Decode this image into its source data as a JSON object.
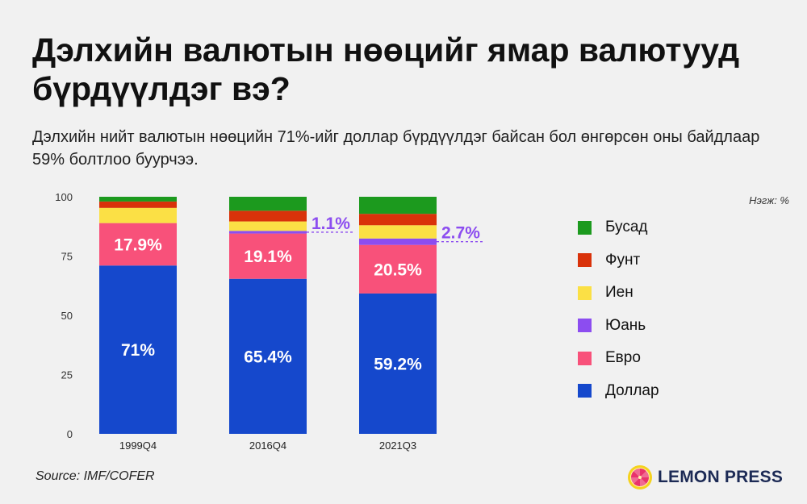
{
  "title": "Дэлхийн валютын нөөцийг ямар валютууд бүрдүүлдэг вэ?",
  "subtitle": "Дэлхийн нийт валютын нөөцийн 71%-ийг доллар бүрдүүлдэг байсан бол өнгөрсөн оны байдлаар 59% болтлоо буурчээ.",
  "unit_note": "Нэгж: %",
  "source": "Source: IMF/COFER",
  "brand": {
    "name": "LEMON PRESS",
    "logo_icon": "lemon-slice-icon",
    "color": "#1c2a55",
    "logo_color": "#f5d21e"
  },
  "chart_data": {
    "type": "bar",
    "stacked": true,
    "categories": [
      "1999Q4",
      "2016Q4",
      "2021Q3"
    ],
    "ylim": [
      0,
      100
    ],
    "yticks": [
      0,
      25,
      50,
      75,
      100
    ],
    "grid": false,
    "legend_position": "right",
    "series": [
      {
        "name": "Доллар",
        "color": "#1548cc",
        "values": [
          71.0,
          65.4,
          59.2
        ],
        "labels": [
          "71%",
          "65.4%",
          "59.2%"
        ]
      },
      {
        "name": "Евро",
        "color": "#f8517a",
        "values": [
          17.9,
          19.1,
          20.5
        ],
        "labels": [
          "17.9%",
          "19.1%",
          "20.5%"
        ]
      },
      {
        "name": "Юань",
        "color": "#8c4df0",
        "values": [
          0,
          1.1,
          2.7
        ],
        "labels": [
          "",
          "1.1%",
          "2.7%"
        ]
      },
      {
        "name": "Иен",
        "color": "#fbe045",
        "values": [
          6.4,
          4.0,
          5.6
        ]
      },
      {
        "name": "Фунт",
        "color": "#d9320a",
        "values": [
          2.7,
          4.5,
          4.8
        ]
      },
      {
        "name": "Бусад",
        "color": "#1c9a1e",
        "values": [
          2.0,
          5.9,
          7.2
        ]
      }
    ]
  }
}
